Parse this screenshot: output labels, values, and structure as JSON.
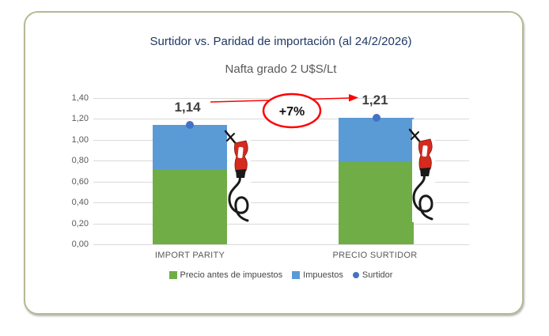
{
  "card": {
    "border_color": "#b7b894"
  },
  "chart_data": {
    "type": "bar",
    "stacked": true,
    "title": "Surtidor vs. Paridad de importación (al 24/2/2026)",
    "title_color": "#1f3864",
    "subtitle": "Nafta grado 2 U$S/Lt",
    "categories": [
      "IMPORT PARITY",
      "PRECIO SURTIDOR"
    ],
    "series": [
      {
        "name": "Precio antes de impuestos",
        "type": "bar",
        "color": "#70AD47",
        "values": [
          0.72,
          0.79
        ]
      },
      {
        "name": "Impuestos",
        "type": "bar",
        "color": "#5B9BD5",
        "values": [
          0.42,
          0.42
        ]
      },
      {
        "name": "Surtidor",
        "type": "point",
        "color": "#4472C4",
        "values": [
          1.14,
          1.21
        ]
      }
    ],
    "total_labels": [
      "1,14",
      "1,21"
    ],
    "y_axis": {
      "min": 0.0,
      "max": 1.4,
      "step": 0.2,
      "tick_labels": [
        "1,40",
        "1,20",
        "1,00",
        "0,80",
        "0,60",
        "0,40",
        "0,20",
        "0,00"
      ],
      "grid": true
    },
    "legend_position": "bottom",
    "annotation": {
      "label": "+7%",
      "shape": "ellipse",
      "color": "#ff0000"
    },
    "icons": [
      "fuel-pump",
      "fuel-pump"
    ]
  }
}
